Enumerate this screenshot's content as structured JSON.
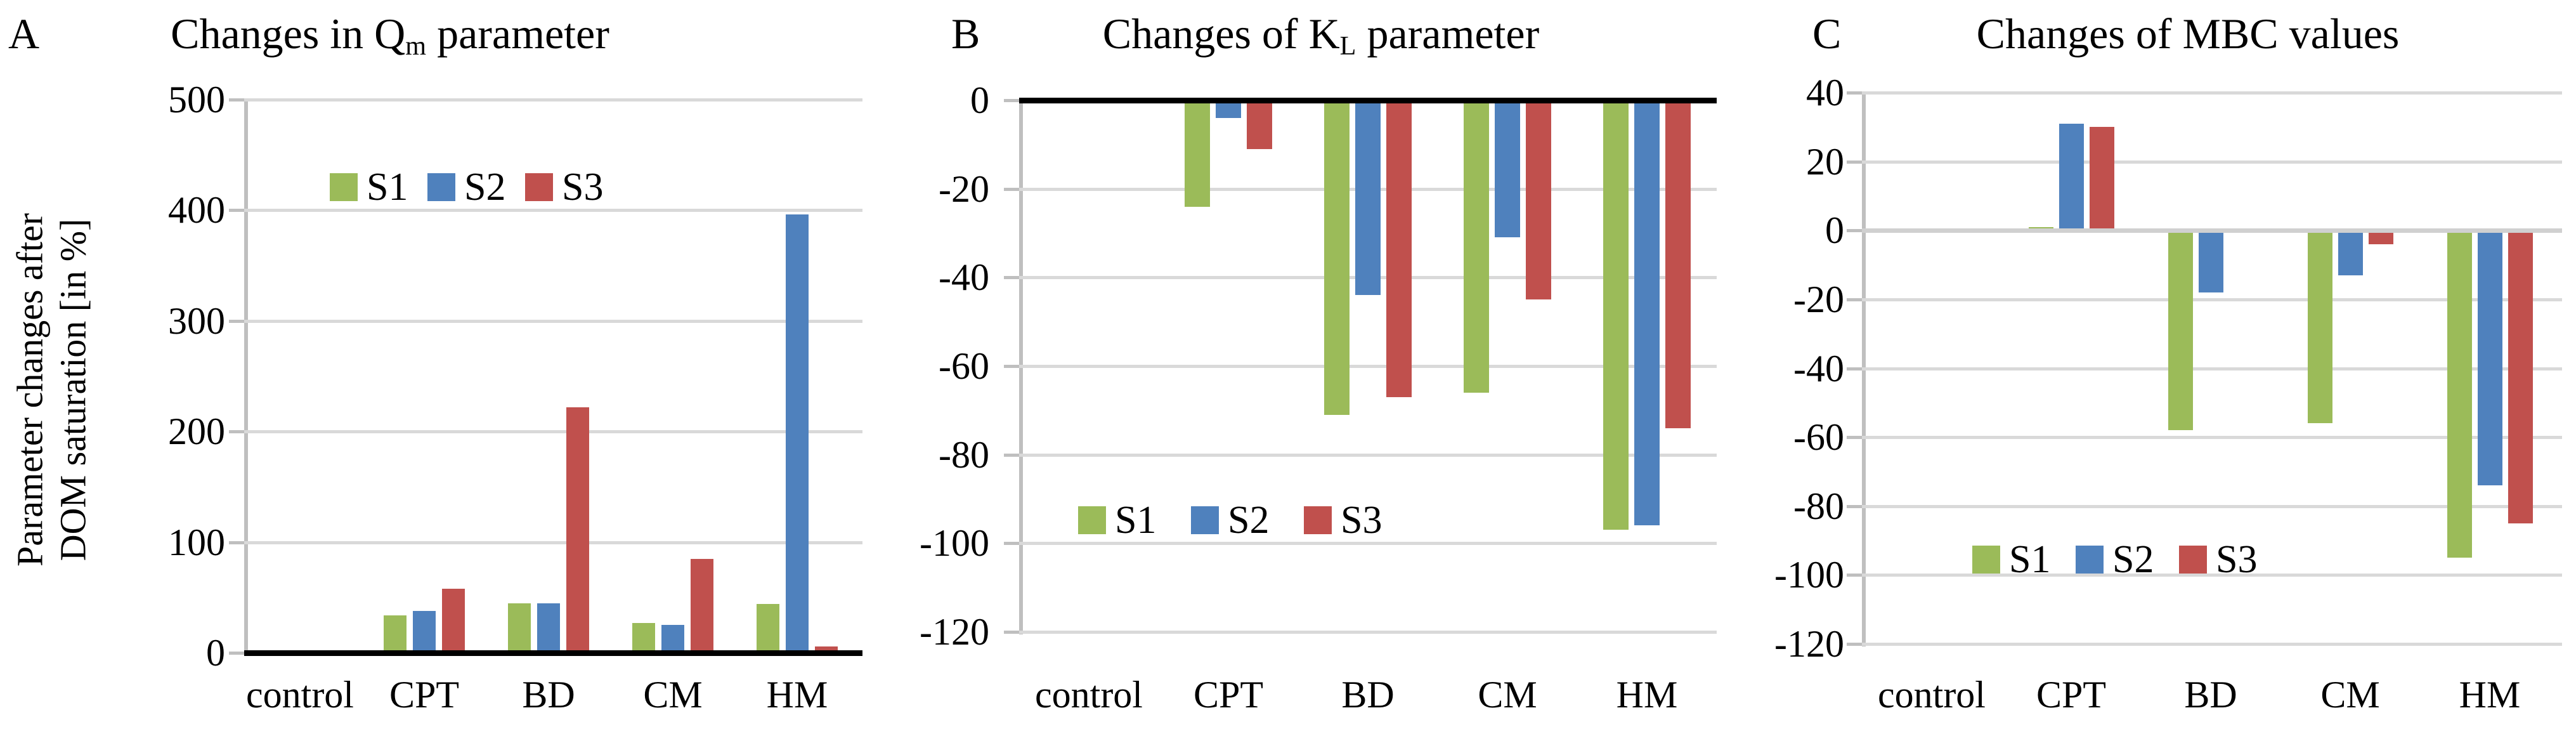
{
  "colors": {
    "s1_green": "#9BBB59",
    "s2_blue": "#4F81BD",
    "s3_red": "#C0504D",
    "gridline": "#D9D9D9",
    "axis_gray": "#BFBFBF",
    "zero_axis_black": "#000000",
    "zero_axis_gray": "#D0D0D0",
    "text": "#000000",
    "background": "#FFFFFF"
  },
  "chart_data": [
    {
      "type": "bar",
      "panel_letter": "A",
      "title_plain": "Changes in Qm parameter",
      "title_prefix": "Changes in Q",
      "title_sub": "m",
      "title_suffix": " parameter",
      "ylabel": "Parameter changes after DOM saturation [in %]",
      "ylabel_line1": "Parameter changes after",
      "ylabel_line2": "DOM saturation [in %]",
      "ylim": [
        0,
        500
      ],
      "ytick_step": 100,
      "ytick_labels": [
        "500",
        "400",
        "300",
        "200",
        "100",
        "0"
      ],
      "grid": true,
      "zero_axis_style": "black",
      "legend_position": "inside-top",
      "categories": [
        "control",
        "CPT",
        "BD",
        "CM",
        "HM"
      ],
      "series": [
        {
          "name": "S1",
          "color": "#9BBB59",
          "values": [
            0,
            34,
            45,
            27,
            44
          ]
        },
        {
          "name": "S2",
          "color": "#4F81BD",
          "values": [
            0,
            38,
            45,
            25,
            396
          ]
        },
        {
          "name": "S3",
          "color": "#C0504D",
          "values": [
            0,
            58,
            222,
            85,
            6
          ]
        }
      ]
    },
    {
      "type": "bar",
      "panel_letter": "B",
      "title_plain": "Changes of KL parameter",
      "title_prefix": "Changes of K",
      "title_sub": "L",
      "title_suffix": " parameter",
      "ylabel": "",
      "ylim": [
        -120,
        0
      ],
      "ytick_step": 20,
      "ytick_labels": [
        "0",
        "-20",
        "-40",
        "-60",
        "-80",
        "-100",
        "-120"
      ],
      "grid": true,
      "zero_axis_style": "black",
      "legend_position": "inside-bottom-left",
      "categories": [
        "control",
        "CPT",
        "BD",
        "CM",
        "HM"
      ],
      "series": [
        {
          "name": "S1",
          "color": "#9BBB59",
          "values": [
            0,
            -24,
            -71,
            -66,
            -97
          ]
        },
        {
          "name": "S2",
          "color": "#4F81BD",
          "values": [
            0,
            -4,
            -44,
            -31,
            -96
          ]
        },
        {
          "name": "S3",
          "color": "#C0504D",
          "values": [
            0,
            -11,
            -67,
            -45,
            -74
          ]
        }
      ]
    },
    {
      "type": "bar",
      "panel_letter": "C",
      "title_plain": "Changes of MBC values",
      "title_prefix": "Changes of MBC values",
      "title_sub": "",
      "title_suffix": "",
      "ylabel": "",
      "ylim": [
        -120,
        40
      ],
      "ytick_step": 20,
      "ytick_labels": [
        "40",
        "20",
        "0",
        "-20",
        "-40",
        "-60",
        "-80",
        "-100",
        "-120"
      ],
      "grid": true,
      "zero_axis_style": "gray",
      "legend_position": "inside-bottom-left",
      "categories": [
        "control",
        "CPT",
        "BD",
        "CM",
        "HM"
      ],
      "series": [
        {
          "name": "S1",
          "color": "#9BBB59",
          "values": [
            0,
            1,
            -58,
            -56,
            -95
          ]
        },
        {
          "name": "S2",
          "color": "#4F81BD",
          "values": [
            0,
            31,
            -18,
            -13,
            -74
          ]
        },
        {
          "name": "S3",
          "color": "#C0504D",
          "values": [
            0,
            30,
            0,
            -4,
            -85
          ]
        }
      ]
    }
  ]
}
